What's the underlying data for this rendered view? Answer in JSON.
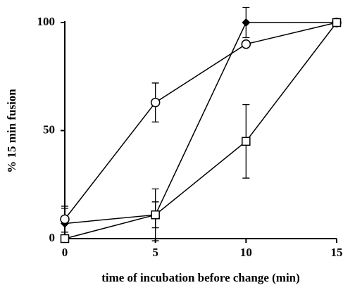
{
  "chart_data": {
    "type": "line",
    "xlabel": "time of incubation before change (min)",
    "ylabel": "% 15 min fusion",
    "x": [
      0,
      5,
      10,
      15
    ],
    "xlim": [
      0,
      15
    ],
    "xticks": [
      0,
      5,
      10,
      15
    ],
    "ylim": [
      0,
      100
    ],
    "yticks": [
      0,
      50,
      100
    ],
    "series": [
      {
        "marker": "diamond",
        "color": "#000000",
        "values": [
          7,
          11,
          100,
          100
        ],
        "errors": [
          7,
          6,
          7,
          null
        ]
      },
      {
        "marker": "circle",
        "color": "#000000",
        "values": [
          9,
          63,
          90,
          100
        ],
        "errors": [
          6,
          9,
          null,
          null
        ]
      },
      {
        "marker": "square",
        "color": "#000000",
        "values": [
          0,
          11,
          45,
          100
        ],
        "errors": [
          null,
          12,
          17,
          null
        ]
      }
    ]
  }
}
